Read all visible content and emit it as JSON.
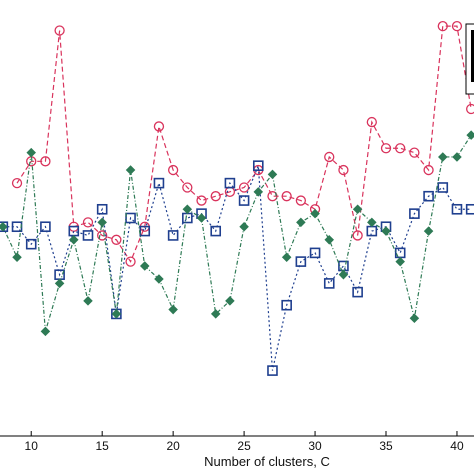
{
  "chart_data": {
    "type": "line",
    "title": "",
    "xlabel": "Number of clusters, C",
    "ylabel": "",
    "xlim": [
      7.8,
      41.2
    ],
    "ylim": [
      0,
      100
    ],
    "grid": false,
    "x_ticks": [
      10,
      15,
      20,
      25,
      30,
      35,
      40
    ],
    "x_tick_labels": [
      "10",
      "15",
      "20",
      "25",
      "30",
      "35",
      "40"
    ],
    "x": [
      8,
      9,
      10,
      11,
      12,
      13,
      14,
      15,
      16,
      17,
      18,
      19,
      20,
      21,
      22,
      23,
      24,
      25,
      26,
      27,
      28,
      29,
      30,
      31,
      32,
      33,
      34,
      35,
      36,
      37,
      38,
      39,
      40,
      41
    ],
    "series": [
      {
        "marker": "circle",
        "color": "#d9335c",
        "values": [
          null,
          58,
          63,
          63,
          93,
          48,
          49,
          46,
          45,
          40,
          48,
          71,
          61,
          57,
          54,
          55,
          56,
          57,
          61,
          55,
          55,
          54,
          52,
          64,
          61,
          46,
          72,
          66,
          66,
          65,
          61,
          94,
          94,
          75
        ]
      },
      {
        "marker": "square",
        "color": "#1f3f8f",
        "values": [
          48,
          48,
          44,
          48,
          37,
          47,
          46,
          52,
          28,
          50,
          47,
          58,
          46,
          50,
          51,
          47,
          58,
          54,
          62,
          15,
          30,
          40,
          42,
          35,
          39,
          33,
          47,
          48,
          42,
          51,
          55,
          57,
          52,
          52
        ]
      },
      {
        "marker": "diamond",
        "color": "#2e7a55",
        "values": [
          48,
          41,
          65,
          24,
          35,
          45,
          31,
          49,
          28,
          61,
          39,
          36,
          29,
          52,
          50,
          28,
          31,
          48,
          56,
          60,
          41,
          49,
          51,
          45,
          37,
          52,
          49,
          47,
          40,
          27,
          47,
          64,
          64,
          69
        ]
      }
    ]
  }
}
